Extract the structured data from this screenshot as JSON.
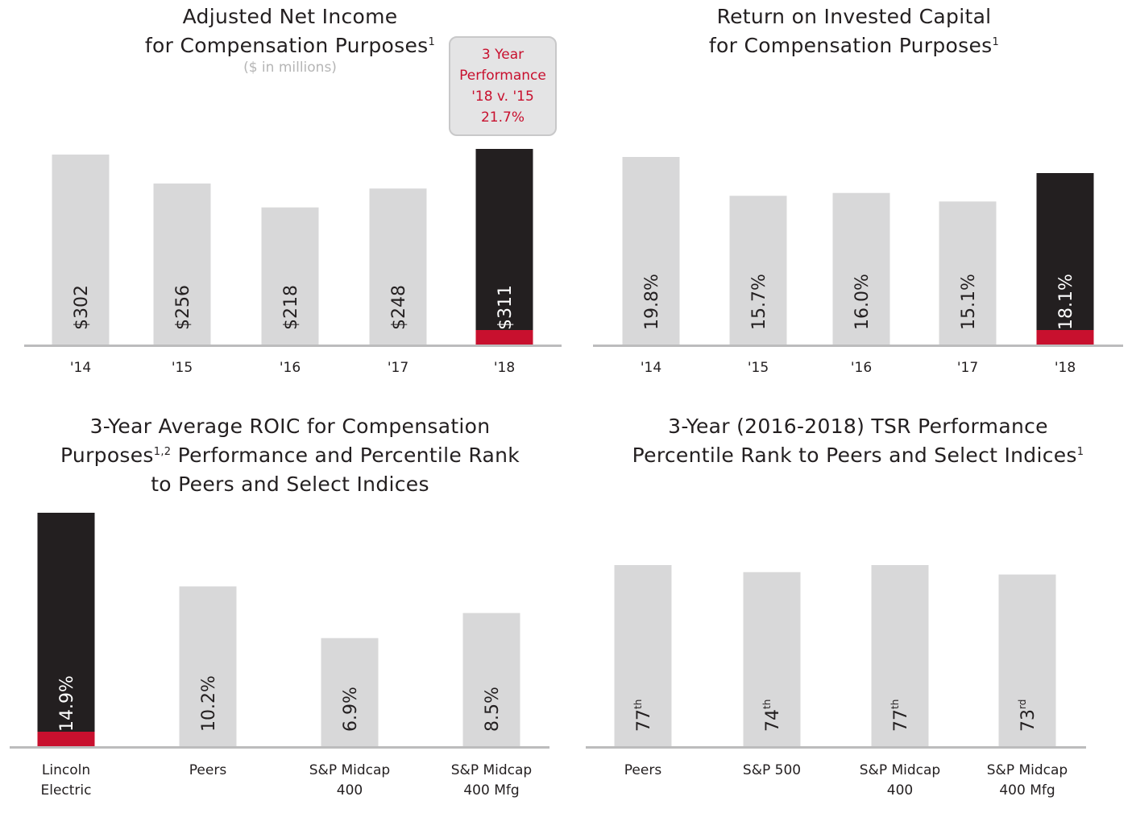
{
  "chart_data": [
    {
      "type": "bar",
      "title_line1": "Adjusted Net Income",
      "title_line2": "for Compensation Purposes",
      "title_sup": "1",
      "subtitle": "($ in millions)",
      "callout": [
        "3 Year",
        "Performance",
        "'18 v. '15",
        "21.7%"
      ],
      "categories": [
        "'14",
        "'15",
        "'16",
        "'17",
        "'18"
      ],
      "values": [
        302,
        256,
        218,
        248,
        311
      ],
      "labels": [
        "$302",
        "$256",
        "$218",
        "$248",
        "$311"
      ],
      "highlight_index": 4
    },
    {
      "type": "bar",
      "title_line1": "Return on Invested Capital",
      "title_line2": "for Compensation Purposes",
      "title_sup": "1",
      "categories": [
        "'14",
        "'15",
        "'16",
        "'17",
        "'18"
      ],
      "values": [
        19.8,
        15.7,
        16.0,
        15.1,
        18.1
      ],
      "labels": [
        "19.8%",
        "15.7%",
        "16.0%",
        "15.1%",
        "18.1%"
      ],
      "highlight_index": 4
    },
    {
      "type": "bar",
      "title_line1": "3-Year Average ROIC for Compensation",
      "title_line2a": "Purposes",
      "title_sup": "1,2",
      "title_line2b": " Performance and Percentile Rank",
      "title_line3": "to Peers and Select Indices",
      "categories": [
        [
          "Lincoln",
          "Electric"
        ],
        [
          "Peers"
        ],
        [
          "S&P Midcap",
          "400"
        ],
        [
          "S&P Midcap",
          "400 Mfg"
        ]
      ],
      "values": [
        14.9,
        10.2,
        6.9,
        8.5
      ],
      "labels": [
        "14.9%",
        "10.2%",
        "6.9%",
        "8.5%"
      ],
      "highlight_index": 0
    },
    {
      "type": "bar",
      "title_line1": "3-Year (2016-2018) TSR Performance",
      "title_line2": "Percentile Rank to Peers and Select Indices",
      "title_sup": "1",
      "categories": [
        [
          "Peers"
        ],
        [
          "S&P 500"
        ],
        [
          "S&P Midcap",
          "400"
        ],
        [
          "S&P Midcap",
          "400 Mfg"
        ]
      ],
      "values": [
        77,
        74,
        77,
        73
      ],
      "labels": [
        [
          "77",
          "th"
        ],
        [
          "74",
          "th"
        ],
        [
          "77",
          "th"
        ],
        [
          "73",
          "rd"
        ]
      ],
      "highlight_index": -1
    }
  ],
  "colors": {
    "bar": "#d8d8d9",
    "highlight": "#231f20",
    "accent": "#c8102e",
    "axis": "#bcbcbd",
    "text": "#231f20",
    "subtitle": "#b5b5b5"
  }
}
